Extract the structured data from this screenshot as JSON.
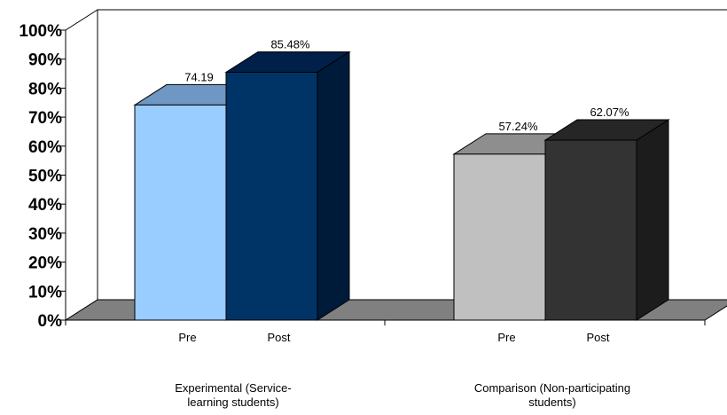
{
  "chart_data": {
    "type": "bar",
    "y_axis": {
      "min": 0,
      "max": 100,
      "step": 10,
      "tick_labels": [
        "0%",
        "10%",
        "20%",
        "30%",
        "40%",
        "50%",
        "60%",
        "70%",
        "80%",
        "90%",
        "100%"
      ]
    },
    "grid": false,
    "legend": "none",
    "three_d": true,
    "groups": [
      {
        "name_lines": [
          "Experimental (Service-",
          "learning students)"
        ],
        "bars": [
          {
            "category": "Pre",
            "value": 74.19,
            "label": "74.19",
            "front": "#99ccff",
            "top": "#6f97c4",
            "side": "#5f86b0"
          },
          {
            "category": "Post",
            "value": 85.48,
            "label": "85.48%",
            "front": "#003366",
            "top": "#00204a",
            "side": "#001a3a"
          }
        ]
      },
      {
        "name_lines": [
          "Comparison (Non-participating",
          "students)"
        ],
        "bars": [
          {
            "category": "Pre",
            "value": 57.24,
            "label": "57.24%",
            "front": "#c0c0c0",
            "top": "#8e8e8e",
            "side": "#7a7a7a"
          },
          {
            "category": "Post",
            "value": 62.07,
            "label": "62.07%",
            "front": "#333333",
            "top": "#262626",
            "side": "#1c1c1c"
          }
        ]
      }
    ]
  }
}
